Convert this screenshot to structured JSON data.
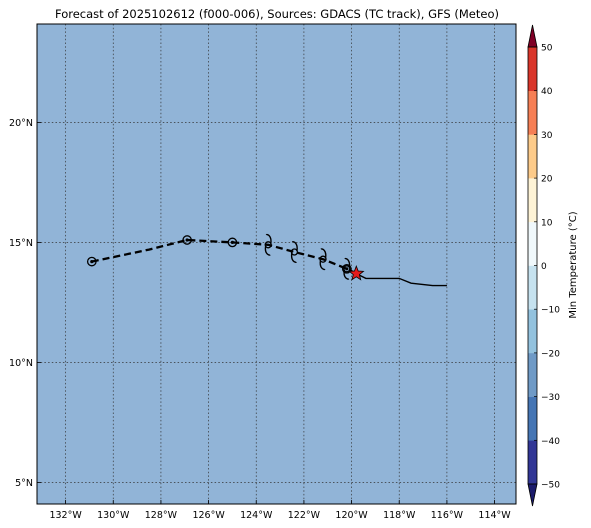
{
  "title": "Forecast of 2025102612 (f000-006), Sources: GDACS (TC track), GFS (Meteo)",
  "map": {
    "ocean_color": "#91b4d7",
    "lon_range": [
      -133.2,
      -113.1
    ],
    "lat_range": [
      4.1,
      24.1
    ],
    "gridlines": "dotted",
    "lon_ticks": [
      {
        "value": -132,
        "label": "132°W"
      },
      {
        "value": -130,
        "label": "130°W"
      },
      {
        "value": -128,
        "label": "128°W"
      },
      {
        "value": -126,
        "label": "126°W"
      },
      {
        "value": -124,
        "label": "124°W"
      },
      {
        "value": -122,
        "label": "122°W"
      },
      {
        "value": -120,
        "label": "120°W"
      },
      {
        "value": -118,
        "label": "118°W"
      },
      {
        "value": -116,
        "label": "116°W"
      },
      {
        "value": -114,
        "label": "114°W"
      }
    ],
    "lat_ticks": [
      {
        "value": 5,
        "label": "5°N"
      },
      {
        "value": 10,
        "label": "10°N"
      },
      {
        "value": 15,
        "label": "15°N"
      },
      {
        "value": 20,
        "label": "20°N"
      }
    ],
    "forecast_track": {
      "style": "dashed",
      "points": [
        [
          -130.9,
          14.2
        ],
        [
          -128.5,
          14.7
        ],
        [
          -126.9,
          15.1
        ],
        [
          -125.0,
          15.0
        ],
        [
          -123.5,
          14.9
        ],
        [
          -122.4,
          14.6
        ],
        [
          -121.2,
          14.3
        ],
        [
          -120.2,
          13.9
        ],
        [
          -119.8,
          13.7
        ]
      ]
    },
    "past_track": {
      "style": "solid",
      "points": [
        [
          -119.8,
          13.7
        ],
        [
          -119.4,
          13.5
        ],
        [
          -119.0,
          13.5
        ],
        [
          -118.0,
          13.5
        ],
        [
          -117.5,
          13.3
        ],
        [
          -116.6,
          13.2
        ],
        [
          -116.0,
          13.2
        ]
      ]
    },
    "circle_markers": [
      [
        -130.9,
        14.2
      ],
      [
        -126.9,
        15.1
      ],
      [
        -125.0,
        15.0
      ],
      [
        -120.2,
        13.9
      ]
    ],
    "cyclone_symbols": [
      [
        -123.5,
        14.9
      ],
      [
        -122.4,
        14.6
      ],
      [
        -121.2,
        14.3
      ],
      [
        -120.2,
        13.9
      ]
    ],
    "current_position": {
      "lon": -119.8,
      "lat": 13.7,
      "color": "#e41a1c"
    }
  },
  "colorbar": {
    "label": "Min Temperature (°C)",
    "ticks": [
      -50,
      -40,
      -30,
      -20,
      -10,
      0,
      10,
      20,
      30,
      40,
      50
    ],
    "tick_labels": [
      "−50",
      "−40",
      "−30",
      "−20",
      "−10",
      "0",
      "10",
      "20",
      "30",
      "40",
      "50"
    ],
    "colors": [
      "#313695",
      "#4575b4",
      "#6f9ac6",
      "#93c2de",
      "#c6e2ef",
      "#f0f8fb",
      "#fef3d6",
      "#fdcb8a",
      "#f67f55",
      "#d9352a",
      "#a50026"
    ],
    "extend_low_color": "#1b1b6b",
    "extend_high_color": "#7f0026"
  }
}
